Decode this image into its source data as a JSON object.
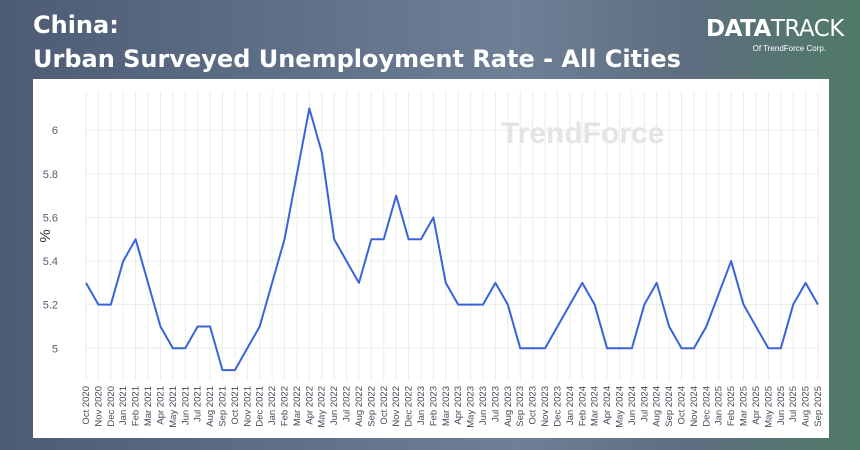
{
  "header": {
    "title_line1": "China:",
    "title_line2": "Urban Surveyed Unemployment Rate - All Cities"
  },
  "brand": {
    "logo_part1": "DATA",
    "logo_part2": "TRACK",
    "sub": "Of TrendForce Corp."
  },
  "watermark": "TrendForce",
  "colors": {
    "line": "#3a63d8",
    "grid": "#ececec"
  },
  "chart_data": {
    "type": "line",
    "title": "",
    "xlabel": "",
    "ylabel": "%",
    "ylim": [
      4.85,
      6.18
    ],
    "yticks": [
      5,
      5.2,
      5.4,
      5.6,
      5.8,
      6
    ],
    "grid": true,
    "categories": [
      "Oct 2020",
      "Nov 2020",
      "Dec 2020",
      "Jan 2021",
      "Feb 2021",
      "Mar 2021",
      "Apr 2021",
      "May 2021",
      "Jun 2021",
      "Jul 2021",
      "Aug 2021",
      "Sep 2021",
      "Oct 2021",
      "Nov 2021",
      "Dec 2021",
      "Jan 2022",
      "Feb 2022",
      "Mar 2022",
      "Apr 2022",
      "May 2022",
      "Jun 2022",
      "Jul 2022",
      "Aug 2022",
      "Sep 2022",
      "Oct 2022",
      "Nov 2022",
      "Dec 2022",
      "Jan 2023",
      "Feb 2023",
      "Mar 2023",
      "Apr 2023",
      "May 2023",
      "Jun 2023",
      "Jul 2023",
      "Aug 2023",
      "Sep 2023",
      "Oct 2023",
      "Nov 2023",
      "Dec 2023",
      "Jan 2024",
      "Feb 2024",
      "Mar 2024",
      "Apr 2024",
      "May 2024",
      "Jun 2024",
      "Jul 2024",
      "Aug 2024",
      "Sep 2024",
      "Oct 2024",
      "Nov 2024",
      "Dec 2024",
      "Jan 2025",
      "Feb 2025",
      "Mar 2025",
      "Apr 2025",
      "May 2025",
      "Jun 2025",
      "Jul 2025",
      "Aug 2025",
      "Sep 2025"
    ],
    "series": [
      {
        "values": [
          5.3,
          5.2,
          5.2,
          5.4,
          5.5,
          5.3,
          5.1,
          5.0,
          5.0,
          5.1,
          5.1,
          4.9,
          4.9,
          5.0,
          5.1,
          5.3,
          5.5,
          5.8,
          6.1,
          5.9,
          5.5,
          5.4,
          5.3,
          5.5,
          5.5,
          5.7,
          5.5,
          5.5,
          5.6,
          5.3,
          5.2,
          5.2,
          5.2,
          5.3,
          5.2,
          5.0,
          5.0,
          5.0,
          5.1,
          5.2,
          5.3,
          5.2,
          5.0,
          5.0,
          5.0,
          5.2,
          5.3,
          5.1,
          5.0,
          5.0,
          5.1,
          5.25,
          5.4,
          5.2,
          5.1,
          5.0,
          5.0,
          5.2,
          5.3,
          5.2
        ]
      }
    ]
  }
}
